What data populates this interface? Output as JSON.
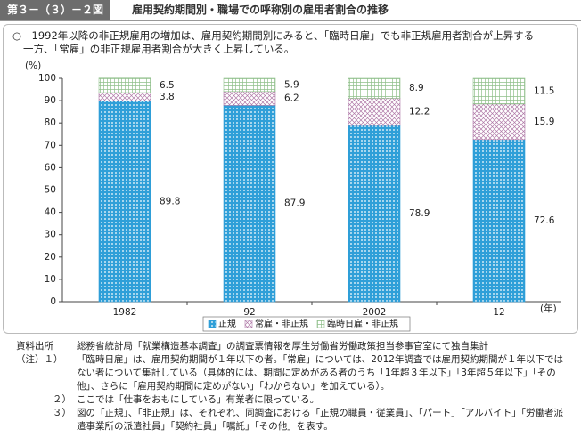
{
  "figure_label": "第３－（３）－２図",
  "title": "雇用契約期間別・職場での呼称別の雇用者割合の推移",
  "subtitle": [
    "○　1992年以降の非正規雇用の増加は、雇用契約期間別にみると、「臨時日雇」でも非正規雇用者割合が上昇する",
    "一方、「常雇」の非正規雇用者割合が大きく上昇している。"
  ],
  "chart_data": {
    "type": "stacked_bar",
    "y_label": "(%)",
    "x_label": "(年)",
    "categories": [
      "1982",
      "92",
      "2002",
      "12"
    ],
    "series": [
      {
        "name": "正規",
        "color": "#2f9fd8",
        "values": [
          89.8,
          87.9,
          78.9,
          72.6
        ]
      },
      {
        "name": "常雇・非正規",
        "color": "#b07aa8",
        "values": [
          3.8,
          6.2,
          12.2,
          15.9
        ]
      },
      {
        "name": "臨時日雇・非正規",
        "color": "#8fbf8a",
        "values": [
          6.5,
          5.9,
          8.9,
          11.5
        ]
      }
    ],
    "ylim": [
      0,
      100
    ],
    "yticks": [
      0,
      10,
      20,
      30,
      40,
      50,
      60,
      70,
      80,
      90,
      100
    ],
    "grid": false
  },
  "notes": [
    {
      "marker": "資料出所",
      "text": "総務省統計局「就業構造基本調査」の調査票情報を厚生労働省労働政策担当参事官室にて独自集計"
    },
    {
      "marker": "（注）１）",
      "text": "「臨時日雇」は、雇用契約期間が１年以下の者。「常雇」については、2012年調査では雇用契約期間が１年以下ではない者について集計している（具体的には、期間に定めがある者のうち「1年超３年以下」「3年超５年以下」「その他」、さらに「雇用契約期間に定めがない」「わからない」を加えている）。"
    },
    {
      "marker": "２）",
      "text": "ここでは「仕事をおもにしている」有業者に限っている。"
    },
    {
      "marker": "３）",
      "text": "図の「正規」、「非正規」は、それぞれ、同調査における「正規の職員・従業員」、「パート」「アルバイト」「労働者派遣事業所の派遣社員」「契約社員」「嘱託」「その他」を表す。"
    }
  ]
}
